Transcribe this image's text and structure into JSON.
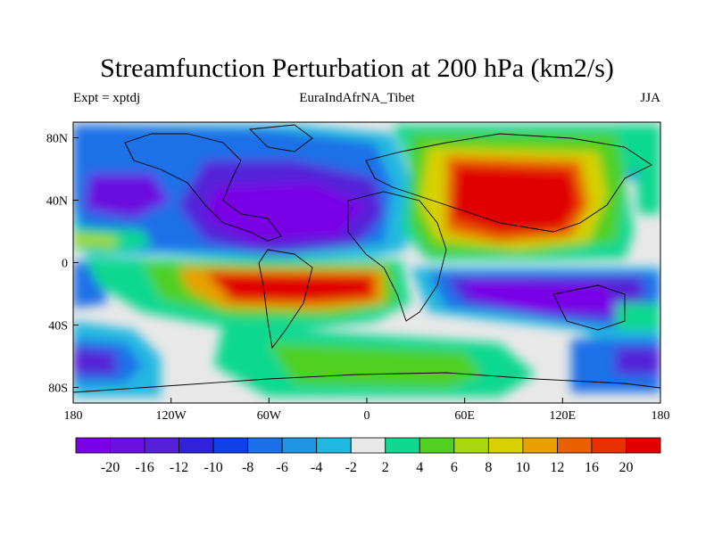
{
  "header": {
    "title": "Streamfunction Perturbation at 200 hPa (km2/s)",
    "left": "Expt = xptdj",
    "center": "EuraIndAfrNA_Tibet",
    "right": "JJA"
  },
  "map": {
    "lon_range": [
      -180,
      180
    ],
    "lat_range": [
      -90,
      90
    ],
    "lon_ticks": [
      {
        "value": -180,
        "label": "180"
      },
      {
        "value": -120,
        "label": "120W"
      },
      {
        "value": -60,
        "label": "60W"
      },
      {
        "value": 0,
        "label": "0"
      },
      {
        "value": 60,
        "label": "60E"
      },
      {
        "value": 120,
        "label": "120E"
      },
      {
        "value": 180,
        "label": "180"
      }
    ],
    "lat_ticks": [
      {
        "value": 80,
        "label": "80N"
      },
      {
        "value": 40,
        "label": "40N"
      },
      {
        "value": 0,
        "label": "0"
      },
      {
        "value": -40,
        "label": "40S"
      },
      {
        "value": -80,
        "label": "80S"
      }
    ]
  },
  "colorbar": {
    "colors": [
      "#7a00e6",
      "#6a10e0",
      "#5520d8",
      "#2f22d8",
      "#1040e8",
      "#1a70e8",
      "#1e95e0",
      "#20b8e0",
      "#e8e8e8",
      "#10d890",
      "#50d020",
      "#a8d810",
      "#d8d000",
      "#e8a000",
      "#e86000",
      "#e83000",
      "#e00000"
    ],
    "labels": [
      "-20",
      "-16",
      "-12",
      "-10",
      "-8",
      "-6",
      "-4",
      "-2",
      "2",
      "4",
      "6",
      "8",
      "10",
      "12",
      "16",
      "20"
    ]
  }
}
